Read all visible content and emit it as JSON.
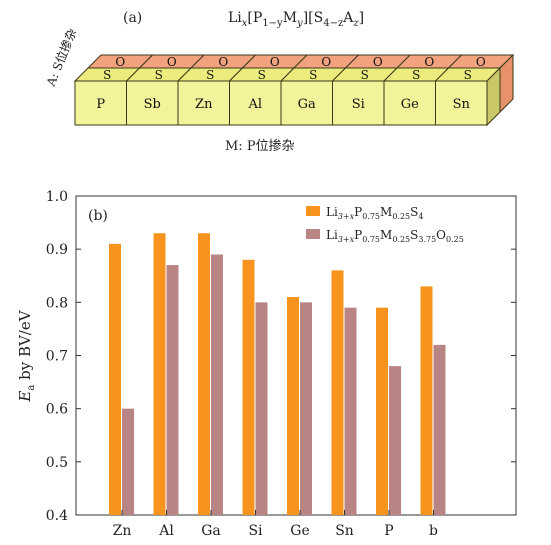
{
  "panel_a": {
    "label": "(a)",
    "formula": {
      "li": "Li",
      "x": "x",
      "p": "P",
      "sub_1my": "1−y",
      "m": "M",
      "y": "y",
      "s": "S",
      "sub_4mz": "4−z",
      "a": "A",
      "z": "z"
    },
    "side_label": "A: S位掺杂",
    "bottom_label": "M: P位掺杂",
    "front_blocks": [
      "P",
      "Sb",
      "Zn",
      "Al",
      "Ga",
      "Si",
      "Ge",
      "Sn"
    ],
    "mid_blocks": [
      "S",
      "S",
      "S",
      "S",
      "S",
      "S",
      "S",
      "S"
    ],
    "top_blocks": [
      "O",
      "O",
      "O",
      "O",
      "O",
      "O",
      "O",
      "O"
    ],
    "colors": {
      "front": "#f3f39b",
      "mid": "#ecec7e",
      "top": "#f2a27e",
      "right_side": "#c9c868",
      "right_top": "#e7926b",
      "stroke": "#3a3a1a"
    }
  },
  "chart_data": {
    "type": "bar",
    "panel_label": "(b)",
    "categories": [
      "Zn",
      "Al",
      "Ga",
      "Si",
      "Ge",
      "Sn",
      "P",
      "b"
    ],
    "series": [
      {
        "name_parts": {
          "li": "Li",
          "s1": "3+x",
          "p": "P",
          "s2": "0.75",
          "m": "M",
          "s3": "0.25",
          "s": "S",
          "s4": "4"
        },
        "color": "#f7941d",
        "values": [
          0.91,
          0.93,
          0.93,
          0.88,
          0.81,
          0.86,
          0.79,
          0.83
        ]
      },
      {
        "name_parts": {
          "li": "Li",
          "s1": "3+x",
          "p": "P",
          "s2": "0.75",
          "m": "M",
          "s3": "0.25",
          "s": "S",
          "s4": "3.75",
          "o": "O",
          "s5": "0.25"
        },
        "color": "#b98484",
        "values": [
          0.6,
          0.87,
          0.89,
          0.8,
          0.8,
          0.79,
          0.68,
          0.72
        ]
      }
    ],
    "ylabel": {
      "e": "E",
      "a": "a",
      "rest": " by BV/eV"
    },
    "ylim": [
      0.4,
      1.0
    ],
    "yticks": [
      "0.4",
      "0.5",
      "0.6",
      "0.7",
      "0.8",
      "0.9",
      "1.0"
    ],
    "legend_position": "top-right",
    "grid": false
  }
}
